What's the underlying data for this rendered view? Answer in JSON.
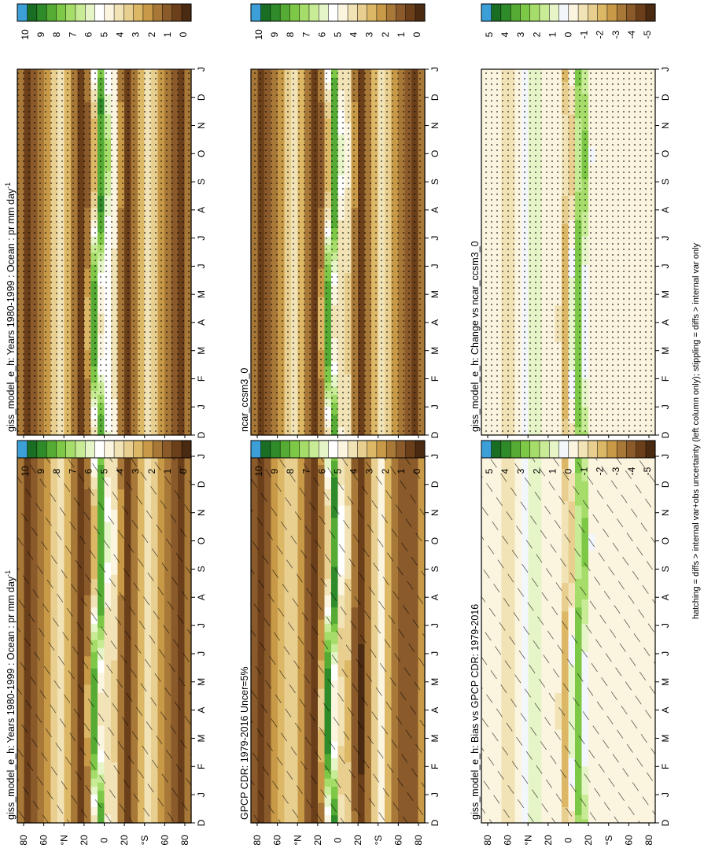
{
  "footnote": "hatching = diffs > internal var+obs uncertainty (left column only); stippling = diffs > internal var only",
  "colors": {
    "precip": [
      "#4a2a10",
      "#6b3f1a",
      "#8a5a2b",
      "#a87838",
      "#c89a48",
      "#dcb766",
      "#e8cf90",
      "#f2e3b6",
      "#fbf4df",
      "#ffffff",
      "#e6f5c8",
      "#c8eb96",
      "#a6dc6a",
      "#7ec848",
      "#55ab34",
      "#2f8b2a",
      "#1a6e24",
      "#3d9fd8"
    ],
    "diff": [
      "#4a2a10",
      "#6b3f1a",
      "#8a5a2b",
      "#a87838",
      "#c89a48",
      "#dcb766",
      "#e8cf90",
      "#f2e3b6",
      "#fbf4df",
      "#f3f6fb",
      "#e6f5c8",
      "#c8eb96",
      "#a6dc6a",
      "#7ec848",
      "#55ab34",
      "#2f8b2a",
      "#1a6e24",
      "#3d9fd8"
    ]
  },
  "colorbars": {
    "precip_ticks": [
      "0",
      "1",
      "2",
      "3",
      "4",
      "5",
      "6",
      "7",
      "8",
      "9",
      "10"
    ],
    "diff_ticks": [
      "-5",
      "-4",
      "-3",
      "-2",
      "-1",
      "0",
      "1",
      "2",
      "3",
      "4",
      "5"
    ]
  },
  "chart_data": [
    {
      "type": "heatmap",
      "title": "giss_model_e_h: Years 1980-1999 : Ocean : pr mm day",
      "title_sup": "-1",
      "x_ticks": [
        "D",
        "J",
        "F",
        "M",
        "A",
        "M",
        "J",
        "J",
        "A",
        "S",
        "O",
        "N",
        "D",
        "J"
      ],
      "y_ticks": [
        "80",
        "60",
        "°N",
        "20",
        "0",
        "20",
        "°S",
        "60",
        "80"
      ],
      "colorbar": "precip",
      "overlay": "hatch",
      "ylim": [
        -90,
        90
      ]
    },
    {
      "type": "heatmap",
      "title": "giss_model_e_h: Years 1980-1999 : Ocean : pr mm day",
      "title_sup": "-1",
      "x_ticks": [
        "D",
        "J",
        "F",
        "M",
        "A",
        "M",
        "J",
        "J",
        "A",
        "S",
        "O",
        "N",
        "D",
        "J"
      ],
      "y_ticks": [
        "80",
        "60",
        "°N",
        "20",
        "0",
        "20",
        "°S",
        "60",
        "80"
      ],
      "colorbar": "precip",
      "overlay": "stipple",
      "ylim": [
        -90,
        90
      ]
    },
    {
      "type": "heatmap",
      "title": "GPCP CDR: 1979-2016 Uncer=5%",
      "title_sup": "",
      "x_ticks": [
        "D",
        "J",
        "F",
        "M",
        "A",
        "M",
        "J",
        "J",
        "A",
        "S",
        "O",
        "N",
        "D",
        "J"
      ],
      "y_ticks": [
        "80",
        "60",
        "°N",
        "20",
        "0",
        "20",
        "°S",
        "60",
        "80"
      ],
      "colorbar": "precip",
      "overlay": "hatch",
      "ylim": [
        -90,
        90
      ]
    },
    {
      "type": "heatmap",
      "title": "ncar_ccsm3_0",
      "title_sup": "",
      "x_ticks": [
        "D",
        "J",
        "F",
        "M",
        "A",
        "M",
        "J",
        "J",
        "A",
        "S",
        "O",
        "N",
        "D",
        "J"
      ],
      "y_ticks": [
        "80",
        "60",
        "°N",
        "20",
        "0",
        "20",
        "°S",
        "60",
        "80"
      ],
      "colorbar": "precip",
      "overlay": "stipple",
      "ylim": [
        -90,
        90
      ]
    },
    {
      "type": "heatmap",
      "title": "giss_model_e_h: Bias vs GPCP CDR: 1979-2016",
      "title_sup": "",
      "x_ticks": [
        "D",
        "J",
        "F",
        "M",
        "A",
        "M",
        "J",
        "J",
        "A",
        "S",
        "O",
        "N",
        "D",
        "J"
      ],
      "y_ticks": [
        "80",
        "60",
        "°N",
        "20",
        "0",
        "20",
        "°S",
        "60",
        "80"
      ],
      "colorbar": "diff",
      "overlay": "hatch",
      "ylim": [
        -90,
        90
      ]
    },
    {
      "type": "heatmap",
      "title": "giss_model_e_h: Change vs ncar_ccsm3_0",
      "title_sup": "",
      "x_ticks": [
        "D",
        "J",
        "F",
        "M",
        "A",
        "M",
        "J",
        "J",
        "A",
        "S",
        "O",
        "N",
        "D",
        "J"
      ],
      "y_ticks": [
        "80",
        "60",
        "°N",
        "20",
        "0",
        "20",
        "°S",
        "60",
        "80"
      ],
      "colorbar": "diff",
      "overlay": "stipple",
      "ylim": [
        -90,
        90
      ]
    }
  ]
}
